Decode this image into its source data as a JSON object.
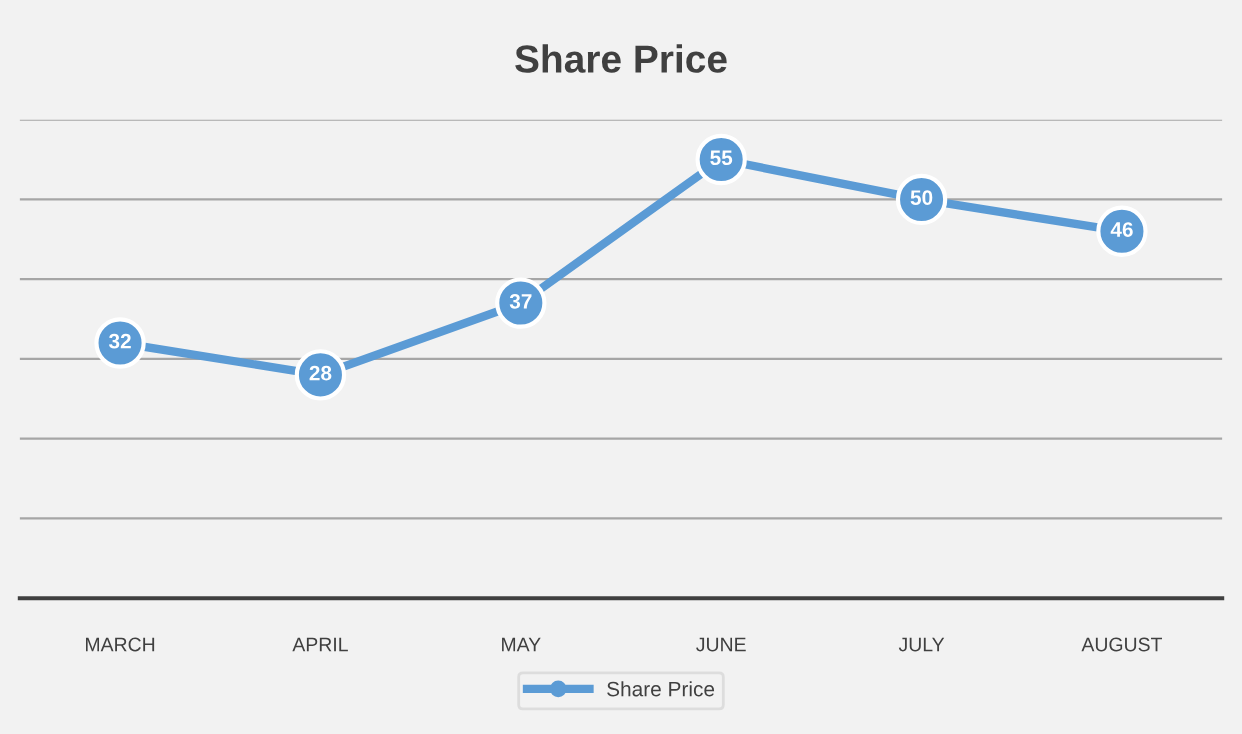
{
  "chart_data": {
    "type": "line",
    "title": "Share Price",
    "categories": [
      "MARCH",
      "APRIL",
      "MAY",
      "JUNE",
      "JULY",
      "AUGUST"
    ],
    "series": [
      {
        "name": "Share Price",
        "color": "#5b9bd5",
        "values": [
          32,
          28,
          37,
          55,
          50,
          46
        ]
      }
    ],
    "ylim": [
      0,
      60
    ],
    "yticks": [
      {
        "value": 0,
        "label": null
      },
      {
        "value": 10,
        "label": null
      },
      {
        "value": 20,
        "label": null
      },
      {
        "value": 30,
        "label": null
      },
      {
        "value": 40,
        "label": null
      },
      {
        "value": 50,
        "label": null
      },
      {
        "value": 60,
        "label": null
      }
    ],
    "tick_labels": "x",
    "grid": "y",
    "legend": "bottom",
    "marker": "circle",
    "line_style": "solid",
    "data_labels": true
  }
}
